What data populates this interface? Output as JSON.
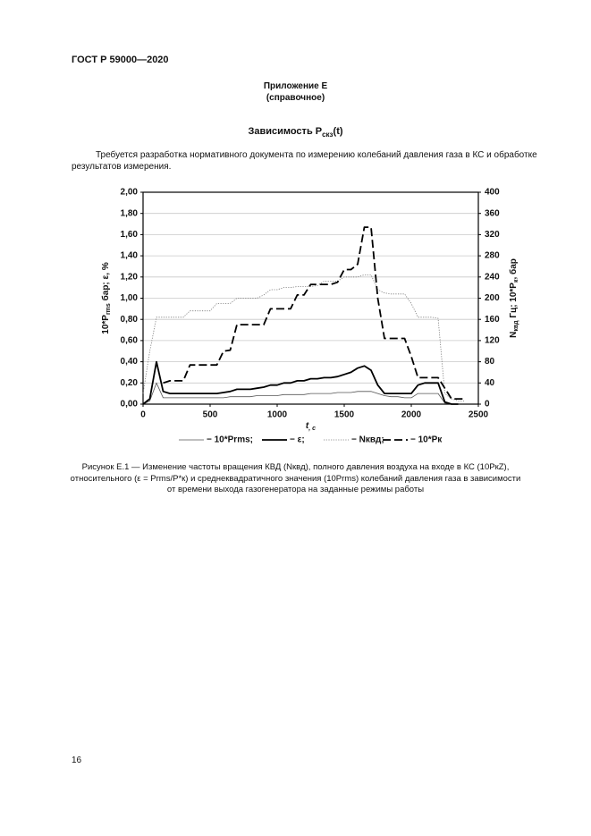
{
  "header": {
    "standard": "ГОСТ Р 59000—2020"
  },
  "appendix": {
    "title": "Приложение Е",
    "status": "(справочное)",
    "heading": [
      "Зависимость P",
      "скз",
      "(t)"
    ]
  },
  "paragraph": [
    "Требуется разработка нормативного документа по измерению колебаний давления газа в КС и обработке",
    "результатов измерения."
  ],
  "chart_data": {
    "type": "line",
    "xlabel": [
      "t",
      ", c"
    ],
    "ylabel": [
      "10*P",
      "rms",
      " бар; ε, %"
    ],
    "y2label": [
      "N",
      "квд",
      " Гц; 10*P",
      "к",
      ", бар"
    ],
    "x": [
      0,
      50,
      100,
      150,
      200,
      250,
      300,
      350,
      400,
      450,
      500,
      550,
      600,
      650,
      700,
      750,
      800,
      850,
      900,
      950,
      1000,
      1050,
      1100,
      1150,
      1200,
      1250,
      1300,
      1350,
      1400,
      1450,
      1500,
      1550,
      1600,
      1650,
      1700,
      1750,
      1800,
      1850,
      1900,
      1950,
      2000,
      2050,
      2100,
      2150,
      2200,
      2250,
      2300,
      2350,
      2400,
      2450
    ],
    "xlim": [
      0,
      2500
    ],
    "xticks": [
      0,
      500,
      1000,
      1500,
      2000,
      2500
    ],
    "ylim": [
      0,
      2
    ],
    "yticks": [
      {
        "value": 0,
        "label": "0,00"
      },
      {
        "value": 0.2,
        "label": "0,20"
      },
      {
        "value": 0.4,
        "label": "0,40"
      },
      {
        "value": 0.6,
        "label": "0,60"
      },
      {
        "value": 0.8,
        "label": "0,80"
      },
      {
        "value": 1,
        "label": "1,00"
      },
      {
        "value": 1.2,
        "label": "1,20"
      },
      {
        "value": 1.4,
        "label": "1,40"
      },
      {
        "value": 1.6,
        "label": "1,60"
      },
      {
        "value": 1.8,
        "label": "1,80"
      },
      {
        "value": 2,
        "label": "2,00"
      }
    ],
    "y2lim": [
      0,
      400
    ],
    "y2ticks": [
      0,
      40,
      80,
      120,
      160,
      200,
      240,
      280,
      320,
      360,
      400
    ],
    "grid": true,
    "series": [
      {
        "name": "− 10*Prms;",
        "color": "#555555",
        "dash": "solid",
        "weight": "thin",
        "values": [
          0,
          0.03,
          0.2,
          0.06,
          0.06,
          0.06,
          0.06,
          0.06,
          0.06,
          0.06,
          0.06,
          0.06,
          0.06,
          0.07,
          0.07,
          0.07,
          0.07,
          0.08,
          0.08,
          0.08,
          0.08,
          0.09,
          0.09,
          0.09,
          0.09,
          0.1,
          0.1,
          0.1,
          0.1,
          0.11,
          0.11,
          0.11,
          0.12,
          0.12,
          0.12,
          0.1,
          0.08,
          0.07,
          0.07,
          0.06,
          0.06,
          0.1,
          0.1,
          0.1,
          0.1,
          0.01,
          0,
          0,
          null,
          null
        ]
      },
      {
        "name": "− ε;",
        "color": "#000000",
        "dash": "solid",
        "weight": "bold",
        "values": [
          0,
          0.05,
          0.4,
          0.12,
          0.1,
          0.1,
          0.1,
          0.1,
          0.1,
          0.1,
          0.1,
          0.1,
          0.11,
          0.12,
          0.14,
          0.14,
          0.14,
          0.15,
          0.16,
          0.18,
          0.18,
          0.2,
          0.2,
          0.22,
          0.22,
          0.24,
          0.24,
          0.25,
          0.25,
          0.26,
          0.28,
          0.3,
          0.34,
          0.36,
          0.32,
          0.18,
          0.1,
          0.1,
          0.1,
          0.1,
          0.1,
          0.18,
          0.2,
          0.2,
          0.2,
          0.02,
          0,
          0,
          null,
          null
        ]
      },
      {
        "name": "− Nквд;",
        "color": "#777777",
        "dash": "dotted",
        "weight": "thin",
        "axis": "y2",
        "values": [
          20,
          100,
          164,
          164,
          164,
          164,
          164,
          176,
          176,
          176,
          176,
          190,
          190,
          190,
          200,
          200,
          200,
          200,
          206,
          216,
          216,
          220,
          220,
          222,
          222,
          222,
          224,
          232,
          232,
          232,
          240,
          240,
          240,
          244,
          244,
          216,
          210,
          208,
          208,
          208,
          190,
          164,
          164,
          164,
          162,
          20,
          10,
          6,
          6,
          null
        ]
      },
      {
        "name": "− 10*Pк",
        "color": "#000000",
        "dash": "dashed",
        "weight": "bold",
        "axis": "y2",
        "values": [
          null,
          null,
          null,
          40,
          44,
          44,
          44,
          74,
          74,
          74,
          74,
          74,
          100,
          102,
          150,
          150,
          150,
          150,
          150,
          180,
          180,
          180,
          180,
          206,
          206,
          226,
          226,
          226,
          226,
          230,
          254,
          254,
          264,
          334,
          334,
          200,
          124,
          124,
          124,
          124,
          90,
          50,
          50,
          50,
          50,
          30,
          10,
          10,
          10,
          null
        ]
      }
    ]
  },
  "caption": [
    "Рисунок Е.1 — Изменение частоты вращения КВД (Nквд), полного давления воздуха на входе в КС (10PкZ),",
    "относительного (ε = Prms/P*к) и среднеквадратичного значения (10Prms) колебаний давления газа в зависимости",
    "от времени выхода газогенератора на заданные режимы работы"
  ],
  "page_number": "16"
}
